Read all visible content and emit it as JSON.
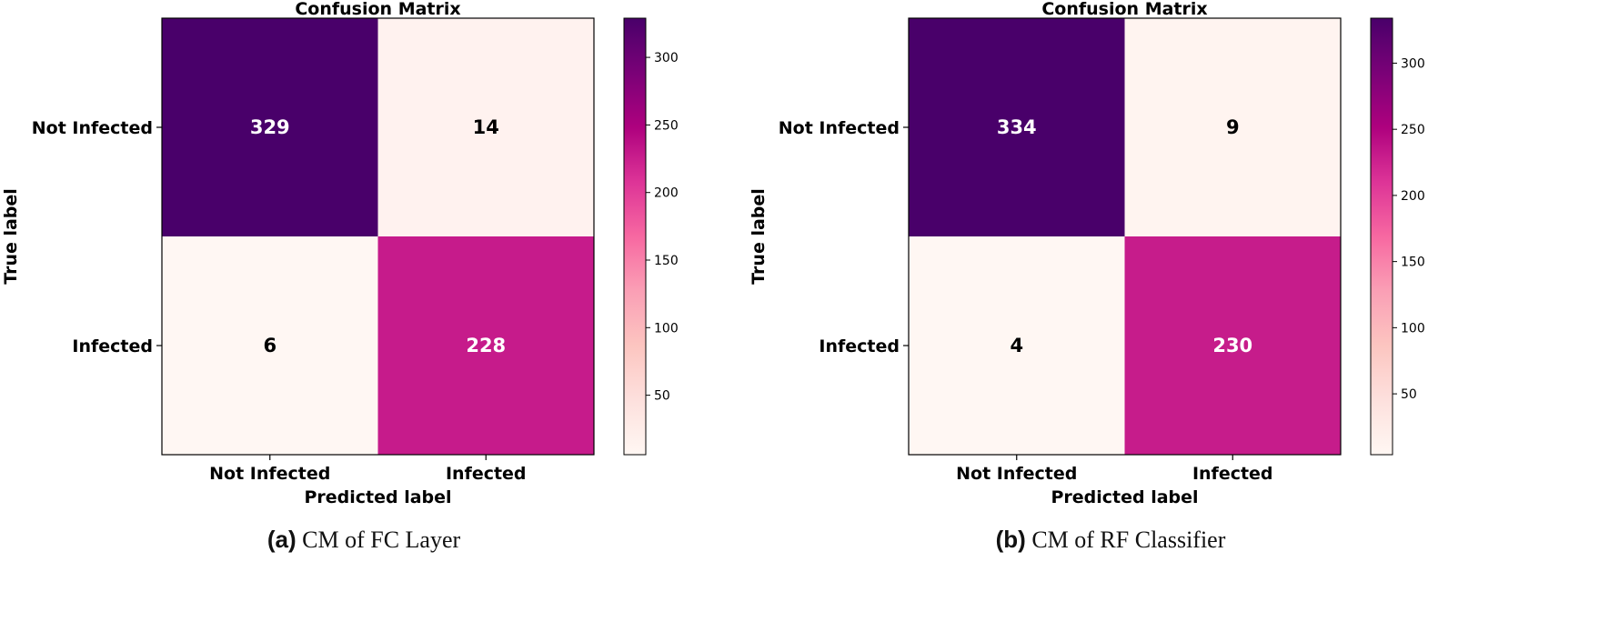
{
  "chart_data": [
    {
      "type": "heatmap",
      "title": "Confusion Matrix",
      "xlabel": "Predicted label",
      "ylabel": "True label",
      "x_categories": [
        "Not Infected",
        "Infected"
      ],
      "y_categories": [
        "Not Infected",
        "Infected"
      ],
      "values": [
        [
          329,
          14
        ],
        [
          6,
          228
        ]
      ],
      "colorbar": {
        "min": 6,
        "max": 329,
        "ticks": [
          50,
          100,
          150,
          200,
          250,
          300
        ],
        "colormap": "RdPu"
      },
      "caption_tag": "(a)",
      "caption_text": "CM of FC Layer"
    },
    {
      "type": "heatmap",
      "title": "Confusion Matrix",
      "xlabel": "Predicted label",
      "ylabel": "True label",
      "x_categories": [
        "Not Infected",
        "Infected"
      ],
      "y_categories": [
        "Not Infected",
        "Infected"
      ],
      "values": [
        [
          334,
          9
        ],
        [
          4,
          230
        ]
      ],
      "colorbar": {
        "min": 4,
        "max": 334,
        "ticks": [
          50,
          100,
          150,
          200,
          250,
          300
        ],
        "colormap": "RdPu"
      },
      "caption_tag": "(b)",
      "caption_text": "CM of RF Classifier"
    }
  ],
  "colors": {
    "low": "#fff0ef",
    "high": "#4a0069",
    "text_dark": "#000000",
    "text_light": "#ffffff"
  }
}
